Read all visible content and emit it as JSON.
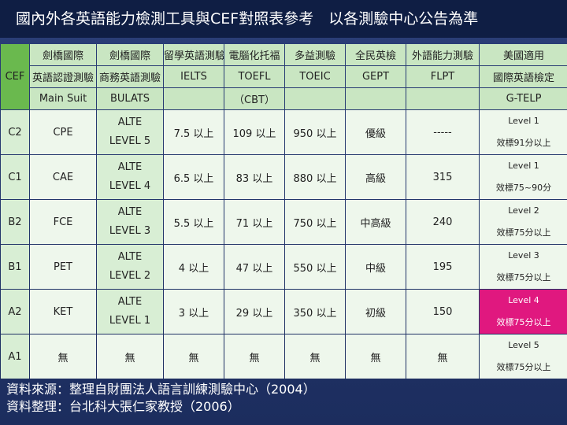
{
  "title": "國內外各英語能力檢測工具與CEF對照表參考　以各測驗中心公告為準",
  "header_row1": [
    "劍橋國際",
    "劍橋國際",
    "留學英語測驗",
    "電腦化托福",
    "多益測驗",
    "全民英檢",
    "外語能力測驗",
    "美國適用"
  ],
  "header_row2": [
    "英語認證測驗",
    "商務英語測驗",
    "IELTS",
    "TOEFL",
    "TOEIC",
    "GEPT",
    "FLPT",
    "國際英語檢定"
  ],
  "header_row3": [
    "Main Suit",
    "BULATS",
    "",
    "（CBT）",
    "",
    "",
    "",
    "G-TELP"
  ],
  "cef_label": "CEF",
  "rows": [
    {
      "level": "C2",
      "main": "CPE",
      "bulats_top": "ALTE",
      "bulats_bottom": "LEVEL 5",
      "ielts": "7.5 以上",
      "toefl": "109 以上",
      "toeic": "950 以上",
      "gept": "優級",
      "flpt": "-----",
      "gtelp_top": "Level 1",
      "gtelp_bottom": "效標91分以上"
    },
    {
      "level": "C1",
      "main": "CAE",
      "bulats_top": "ALTE",
      "bulats_bottom": "LEVEL 4",
      "ielts": "6.5 以上",
      "toefl": "83 以上",
      "toeic": "880 以上",
      "gept": "高級",
      "flpt": "315",
      "gtelp_top": "Level 1",
      "gtelp_bottom": "效標75~90分"
    },
    {
      "level": "B2",
      "main": "FCE",
      "bulats_top": "ALTE",
      "bulats_bottom": "LEVEL 3",
      "ielts": "5.5 以上",
      "toefl": "71 以上",
      "toeic": "750 以上",
      "gept": "中高級",
      "flpt": "240",
      "gtelp_top": "Level 2",
      "gtelp_bottom": "效標75分以上"
    },
    {
      "level": "B1",
      "main": "PET",
      "bulats_top": "ALTE",
      "bulats_bottom": "LEVEL 2",
      "ielts": "4 以上",
      "toefl": "47 以上",
      "toeic": "550 以上",
      "gept": "中級",
      "flpt": "195",
      "gtelp_top": "Level 3",
      "gtelp_bottom": "效標75分以上"
    },
    {
      "level": "A2",
      "main": "KET",
      "bulats_top": "ALTE",
      "bulats_bottom": "LEVEL 1",
      "ielts": "3 以上",
      "toefl": "29 以上",
      "toeic": "350 以上",
      "gept": "初級",
      "flpt": "150",
      "gtelp_top": "Level 4",
      "gtelp_bottom": "效標75分以上"
    },
    {
      "level": "A1",
      "main": "無",
      "bulats_top": "",
      "bulats_bottom": "無",
      "ielts": "無",
      "toefl": "無",
      "toeic": "無",
      "gept": "無",
      "flpt": "無",
      "gtelp_top": "Level 5",
      "gtelp_bottom": "效標75分以上"
    }
  ],
  "source_lines": [
    "資料來源：整理自財團法人語言訓練測驗中心（2004）",
    "資料整理：台北科大張仁家教授（2006）"
  ],
  "colors": {
    "header_green": "#c9e6c2",
    "cef_green": "#6ab94e",
    "highlight_pink": "#e0187f",
    "background_navy": "#22356a"
  }
}
